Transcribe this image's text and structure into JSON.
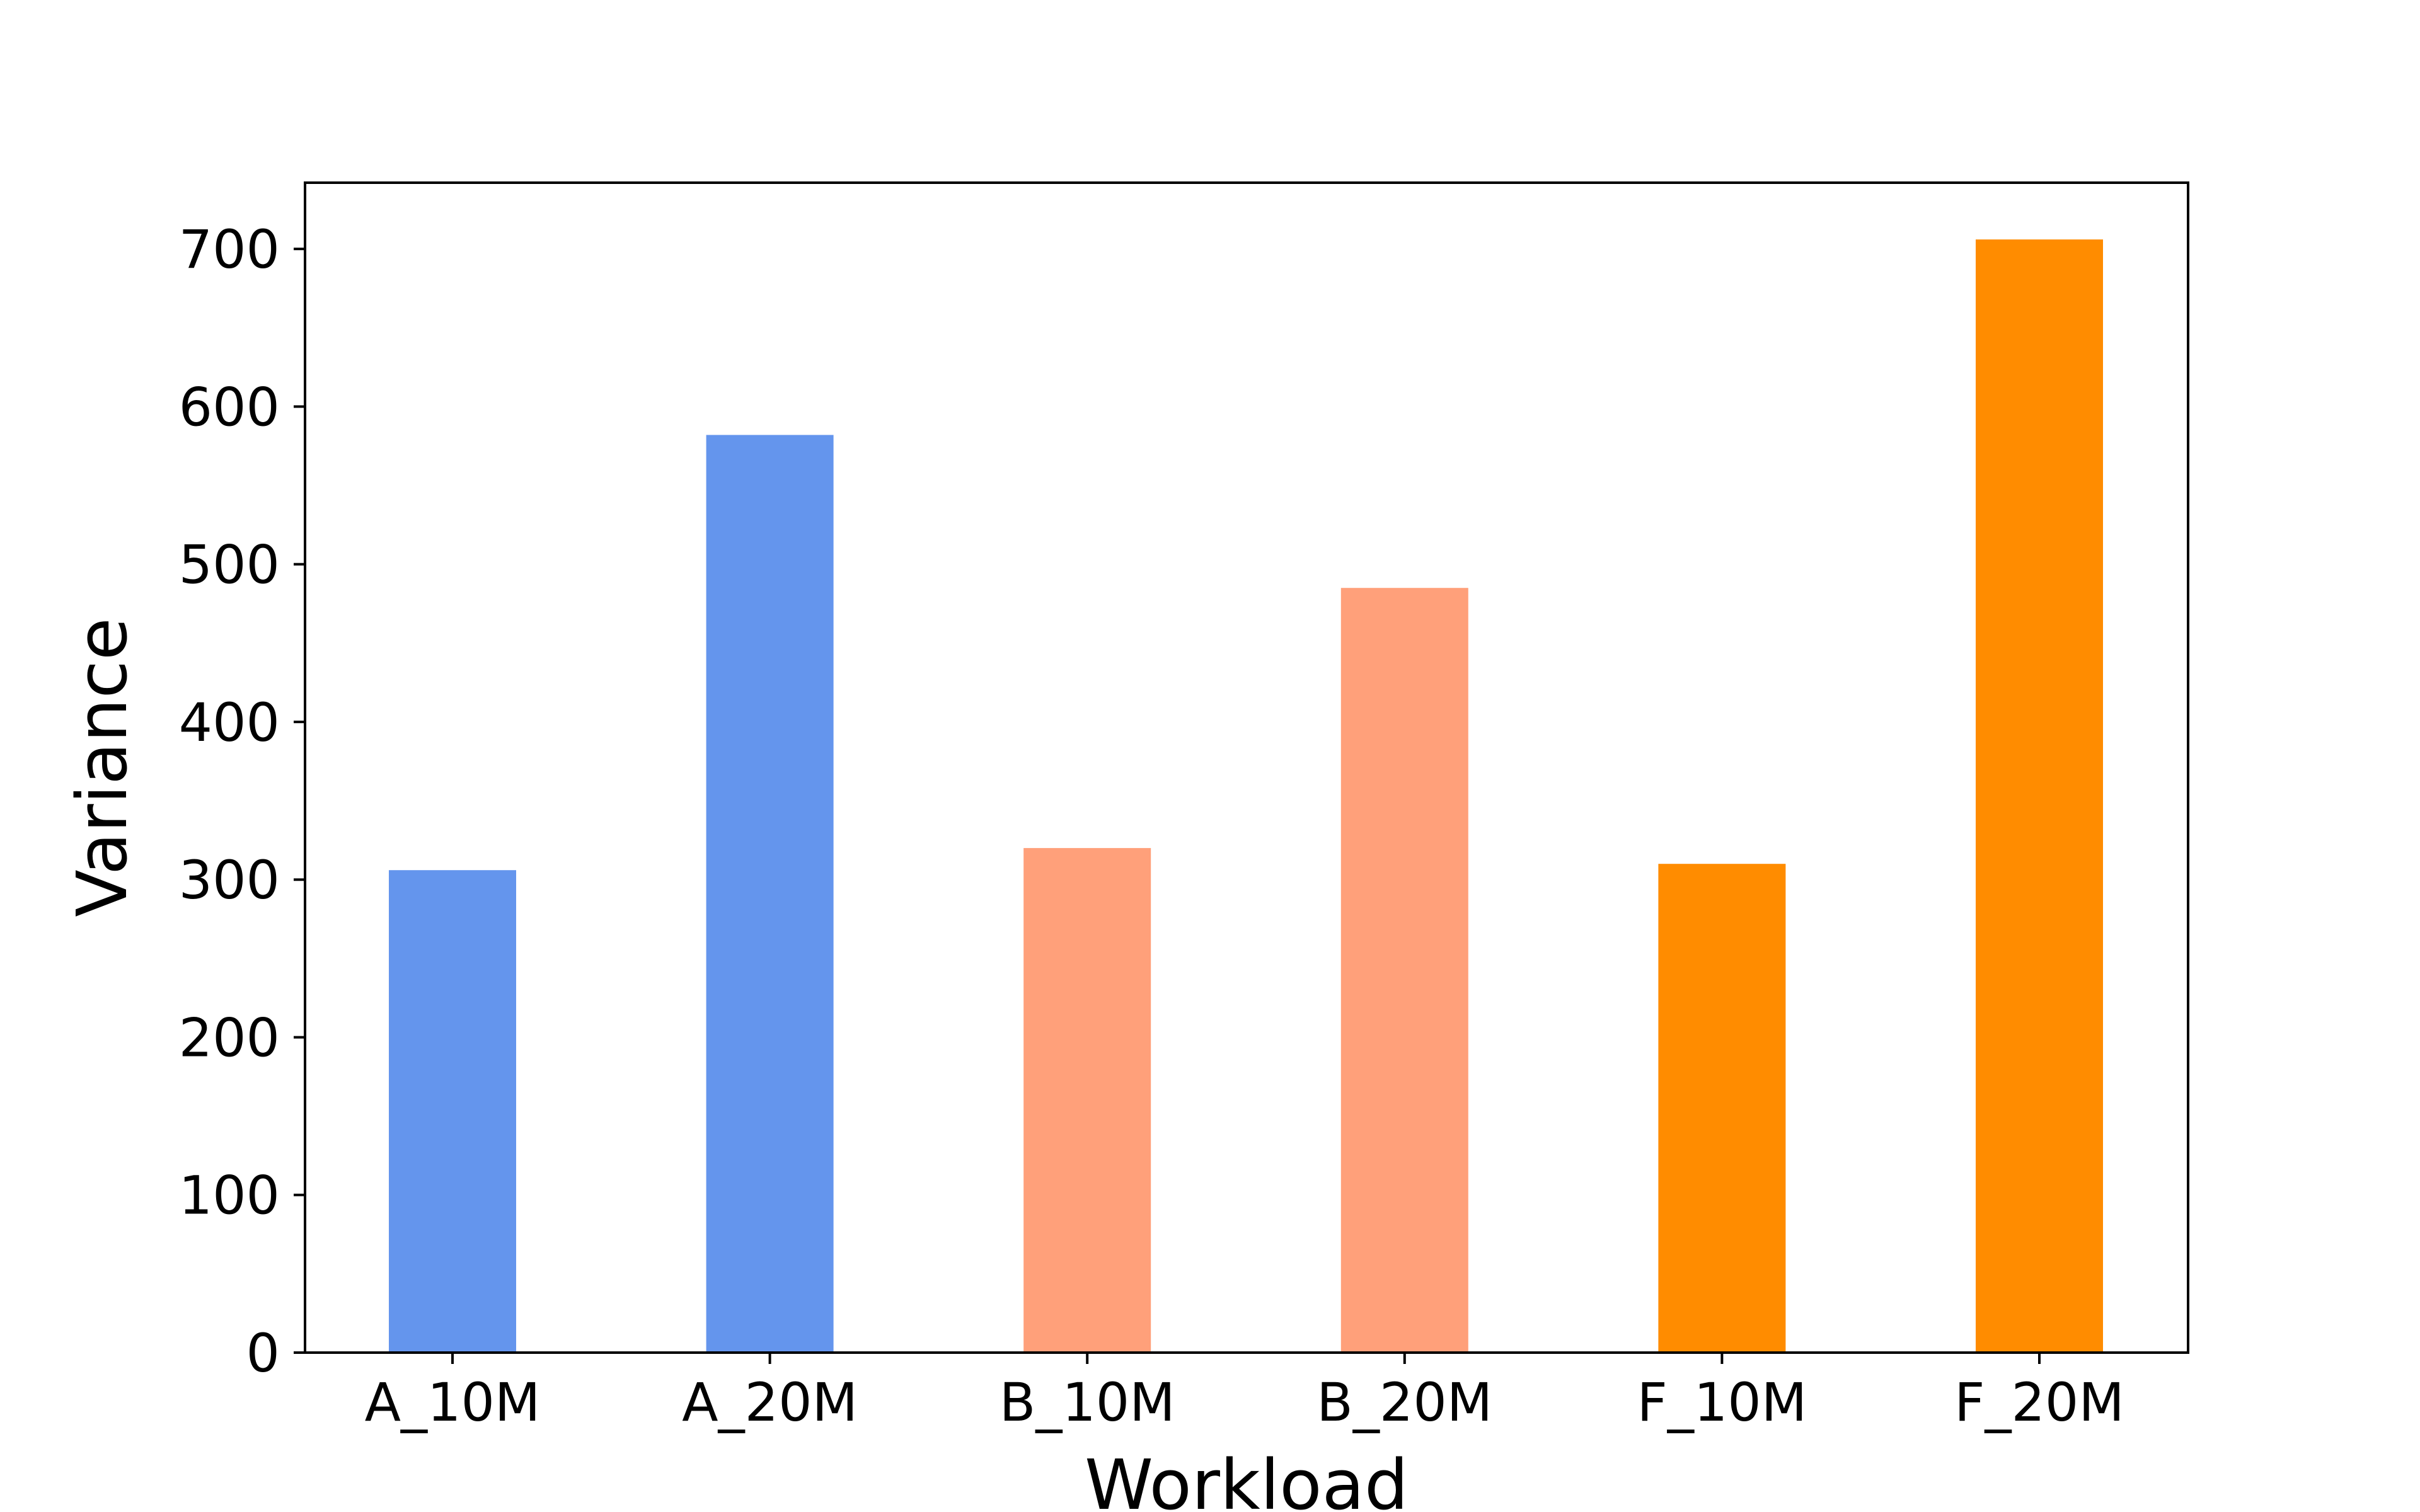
{
  "chart_data": {
    "type": "bar",
    "title": "",
    "xlabel": "Workload",
    "ylabel": "Variance",
    "categories": [
      "A_10M",
      "A_20M",
      "B_10M",
      "B_20M",
      "F_10M",
      "F_20M"
    ],
    "values": [
      306,
      582,
      320,
      485,
      310,
      706
    ],
    "bar_colors": [
      "#6495ed",
      "#6495ed",
      "#ffa07a",
      "#ffa07a",
      "#ff8c00",
      "#ff8c00"
    ],
    "yticks": [
      0,
      100,
      200,
      300,
      400,
      500,
      600,
      700
    ],
    "ylim": [
      0,
      742
    ],
    "grid": false,
    "legend": "none"
  }
}
